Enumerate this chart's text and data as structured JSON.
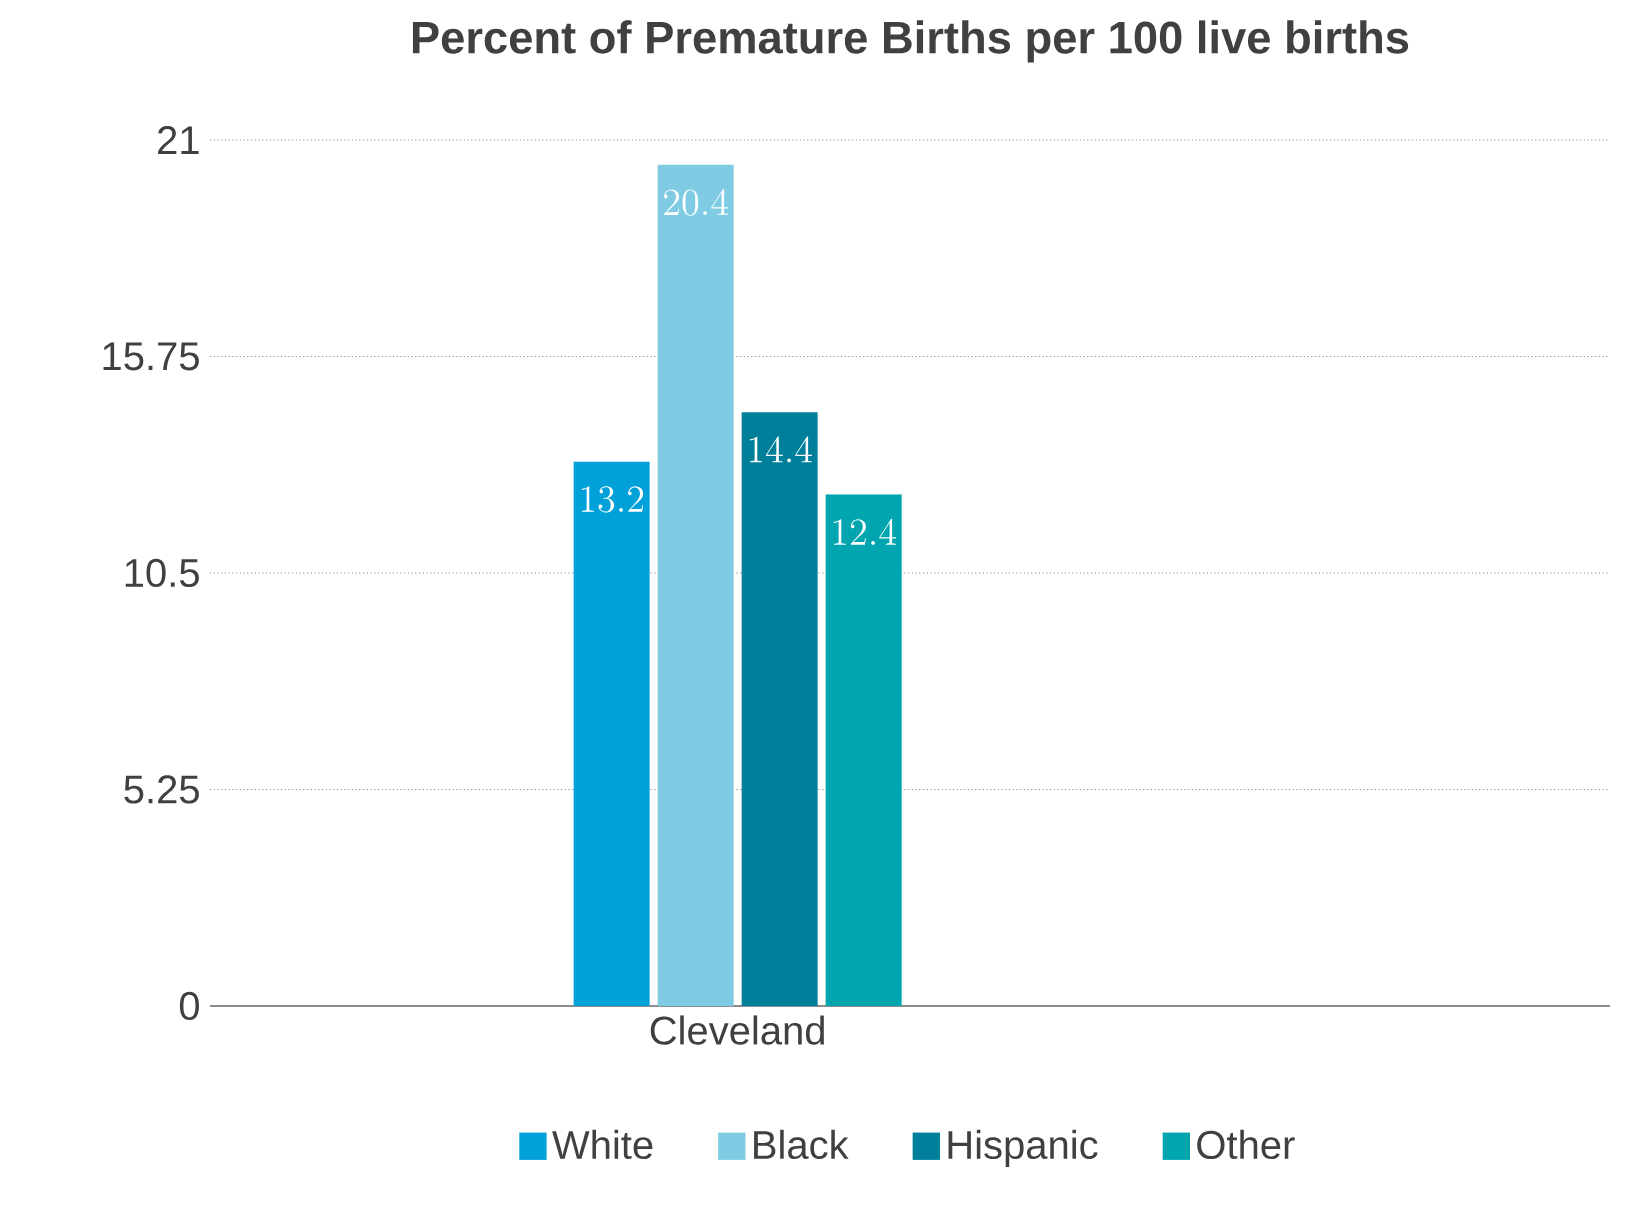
{
  "chart_data": {
    "type": "bar",
    "title": "Percent of Premature Births per 100 live births",
    "categories": [
      "Cleveland"
    ],
    "series": [
      {
        "name": "White",
        "color": "#00a0d8",
        "values": [
          13.2
        ]
      },
      {
        "name": "Black",
        "color": "#7ecbe3",
        "values": [
          20.4
        ]
      },
      {
        "name": "Hispanic",
        "color": "#007f9a",
        "values": [
          14.4
        ]
      },
      {
        "name": "Other",
        "color": "#00a5b0",
        "values": [
          12.4
        ]
      }
    ],
    "ylim": [
      0,
      21
    ],
    "yticks": [
      0,
      5.25,
      10.5,
      15.75,
      21
    ],
    "grid": "y",
    "legend": "bottom",
    "data_labels": true
  }
}
